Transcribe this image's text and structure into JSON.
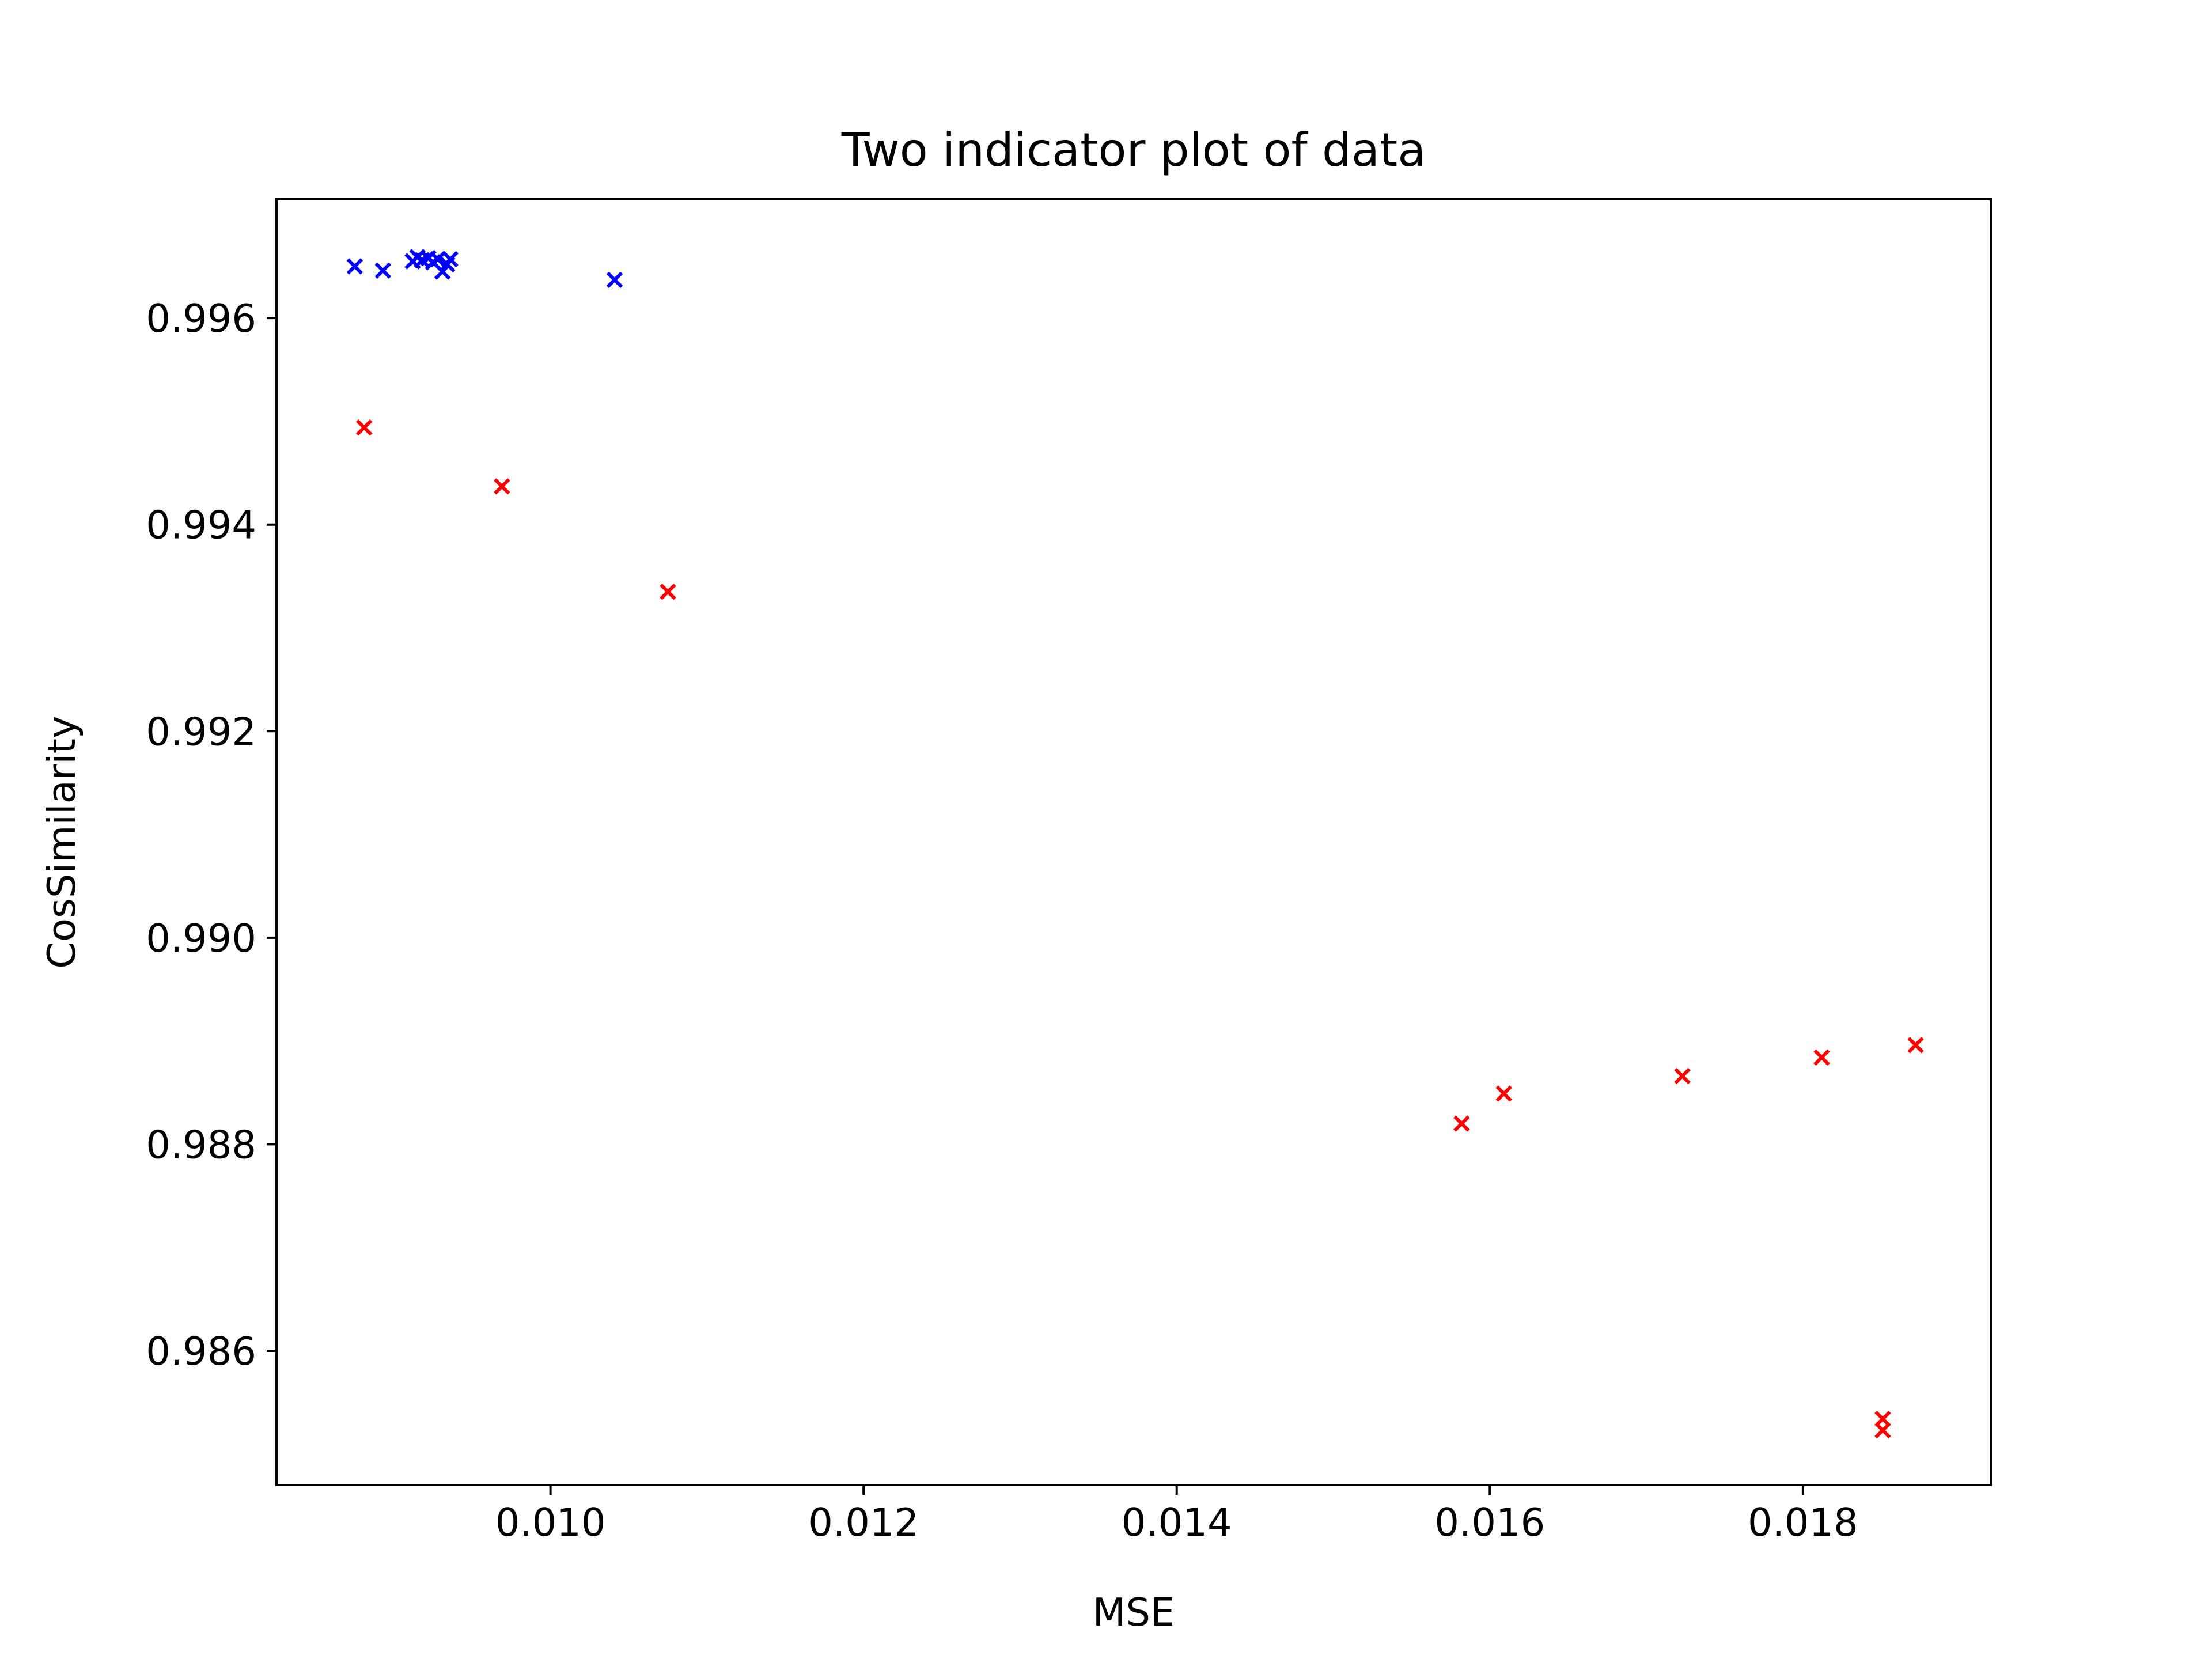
{
  "chart_data": {
    "type": "scatter",
    "title": "Two indicator plot of data",
    "xlabel": "MSE",
    "ylabel": "CosSimilarity",
    "xlim": [
      0.00825,
      0.0192
    ],
    "ylim": [
      0.9847,
      0.99715
    ],
    "x_ticks": [
      0.01,
      0.012,
      0.014,
      0.016,
      0.018
    ],
    "x_tick_labels": [
      "0.010",
      "0.012",
      "0.014",
      "0.016",
      "0.018"
    ],
    "y_ticks": [
      0.986,
      0.988,
      0.99,
      0.992,
      0.994,
      0.996
    ],
    "y_tick_labels": [
      "0.986",
      "0.988",
      "0.990",
      "0.992",
      "0.994",
      "0.996"
    ],
    "grid": false,
    "marker": "x",
    "series": [
      {
        "color": "#0000ff",
        "points": [
          {
            "x": 0.00875,
            "y": 0.9965
          },
          {
            "x": 0.00893,
            "y": 0.99646
          },
          {
            "x": 0.00912,
            "y": 0.99655
          },
          {
            "x": 0.00915,
            "y": 0.99659
          },
          {
            "x": 0.00918,
            "y": 0.99656
          },
          {
            "x": 0.00922,
            "y": 0.99658
          },
          {
            "x": 0.00925,
            "y": 0.99654
          },
          {
            "x": 0.00928,
            "y": 0.99657
          },
          {
            "x": 0.00931,
            "y": 0.99645
          },
          {
            "x": 0.00934,
            "y": 0.99652
          },
          {
            "x": 0.00936,
            "y": 0.99657
          },
          {
            "x": 0.01041,
            "y": 0.99637
          }
        ]
      },
      {
        "color": "#ff0000",
        "points": [
          {
            "x": 0.00881,
            "y": 0.99494
          },
          {
            "x": 0.00969,
            "y": 0.99437
          },
          {
            "x": 0.01075,
            "y": 0.99335
          },
          {
            "x": 0.01582,
            "y": 0.9882
          },
          {
            "x": 0.01609,
            "y": 0.98849
          },
          {
            "x": 0.01723,
            "y": 0.98866
          },
          {
            "x": 0.01812,
            "y": 0.98884
          },
          {
            "x": 0.01851,
            "y": 0.98534
          },
          {
            "x": 0.01851,
            "y": 0.98523
          },
          {
            "x": 0.01872,
            "y": 0.98896
          }
        ]
      }
    ]
  }
}
